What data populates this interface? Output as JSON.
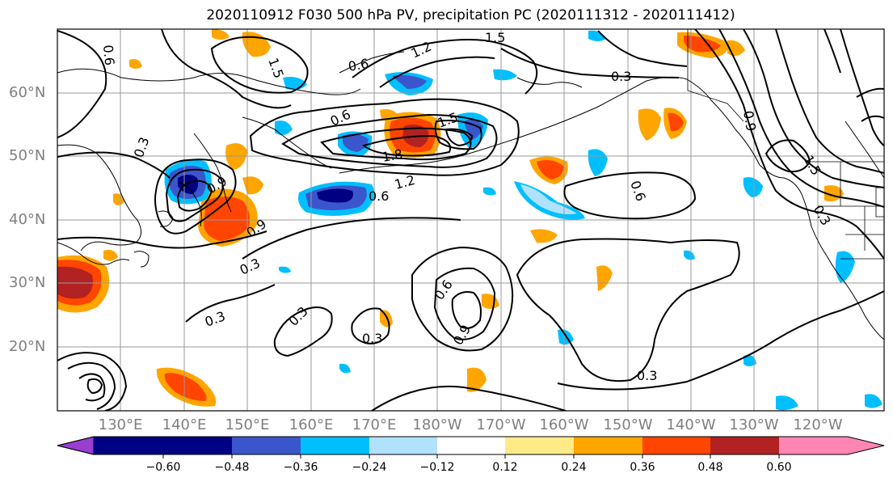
{
  "title": "2020110912 F030 500 hPa PV, precipitation PC (2020111312 - 2020111412)",
  "lat_labels": [
    "60°N",
    "50°N",
    "40°N",
    "30°N",
    "20°N"
  ],
  "lon_labels": [
    "130°E",
    "140°E",
    "150°E",
    "160°E",
    "170°E",
    "180°W",
    "170°W",
    "160°W",
    "150°W",
    "140°W",
    "130°W",
    "120°W"
  ],
  "colorbar": {
    "tick_labels": [
      "−0.60",
      "−0.48",
      "−0.36",
      "−0.24",
      "−0.12",
      "0.12",
      "0.24",
      "0.36",
      "0.48",
      "0.60"
    ],
    "colors": [
      "#9a3ed1",
      "#000083",
      "#3b56cc",
      "#00bfff",
      "#b0e2ff",
      "#ffffff",
      "#ffea88",
      "#ffa500",
      "#ff4500",
      "#b22222",
      "#ff86b4"
    ]
  },
  "contour_labels": [
    "0.3",
    "0.3",
    "0.3",
    "0.3",
    "0.3",
    "0.3",
    "0.6",
    "0.6",
    "0.6",
    "0.6",
    "0.6",
    "0.9",
    "0.9",
    "1.2",
    "1.2",
    "1.5",
    "1.5",
    "1.5",
    "1.8",
    "0.9",
    "0.3",
    "1.5",
    "0.6",
    "0.3",
    "0.9"
  ]
}
